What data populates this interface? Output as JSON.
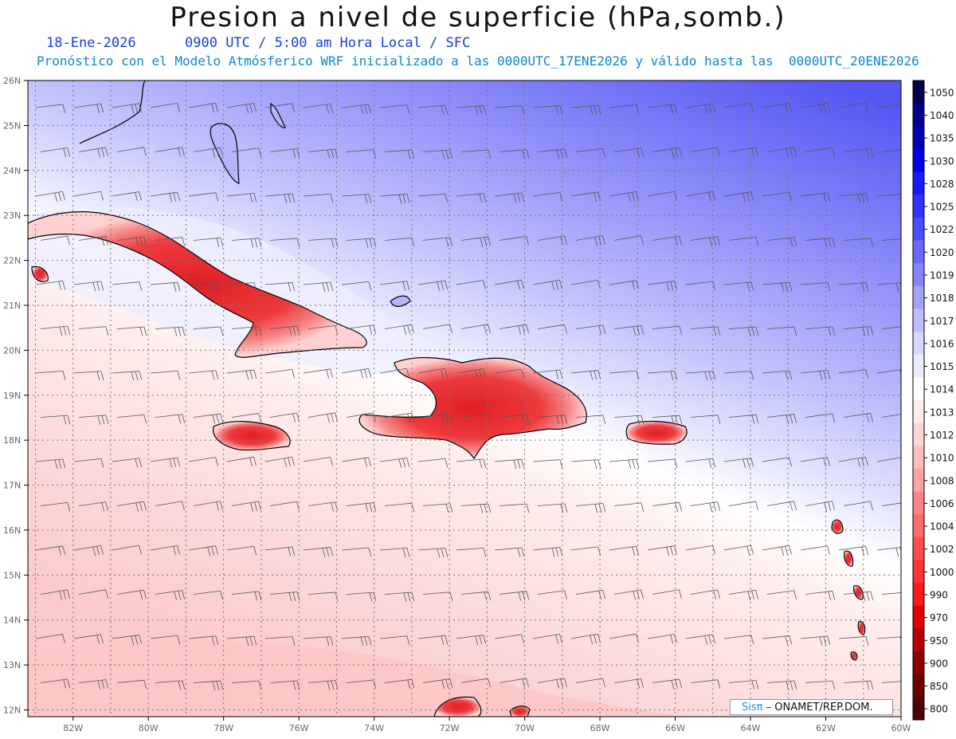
{
  "title": "Presion a nivel de superficie (hPa,somb.)",
  "date": "18-Ene-2026",
  "time_label": "0900 UTC / 5:00 am Hora Local / SFC",
  "model_line": "Pronóstico con el Modelo Atmósferico WRF inicializado a las 0000UTC_17ENE2026 y válido hasta las  0000UTC_20ENE2026",
  "lat_labels": [
    "26N",
    "25N",
    "24N",
    "23N",
    "22N",
    "21N",
    "20N",
    "19N",
    "18N",
    "17N",
    "16N",
    "15N",
    "14N",
    "13N",
    "12N"
  ],
  "lon_labels": [
    "82W",
    "80W",
    "78W",
    "76W",
    "74W",
    "72W",
    "70W",
    "68W",
    "66W",
    "64W",
    "62W",
    "60W"
  ],
  "colorbar": {
    "levels": [
      "1050",
      "1040",
      "1035",
      "1030",
      "1028",
      "1025",
      "1022",
      "1020",
      "1019",
      "1018",
      "1017",
      "1016",
      "1015",
      "1014",
      "1013",
      "1012",
      "1010",
      "1008",
      "1006",
      "1004",
      "1002",
      "1000",
      "990",
      "970",
      "950",
      "900",
      "850",
      "800"
    ],
    "colors": [
      "#00004f",
      "#00008a",
      "#0000b4",
      "#0000e0",
      "#1a1aff",
      "#3333ff",
      "#4d4dff",
      "#6a6aff",
      "#8585ff",
      "#a3a3ff",
      "#bdbdff",
      "#d6d6ff",
      "#ececff",
      "#ffffff",
      "#ffecec",
      "#ffd6d6",
      "#ffbdbd",
      "#ffa3a3",
      "#ff8585",
      "#ff6a6a",
      "#ff4d4d",
      "#ff3333",
      "#ff1a1a",
      "#e00000",
      "#b40000",
      "#8a0000",
      "#6a0000",
      "#4f0000"
    ]
  },
  "credit": {
    "brand": "Sisπ",
    "text": " –  ONAMET/REP.DOM."
  },
  "colors": {
    "land_high": "#e8252a",
    "ocean_north": "#5f5ff5",
    "ocean_south": "#fde0e0",
    "grid": "#777777"
  }
}
